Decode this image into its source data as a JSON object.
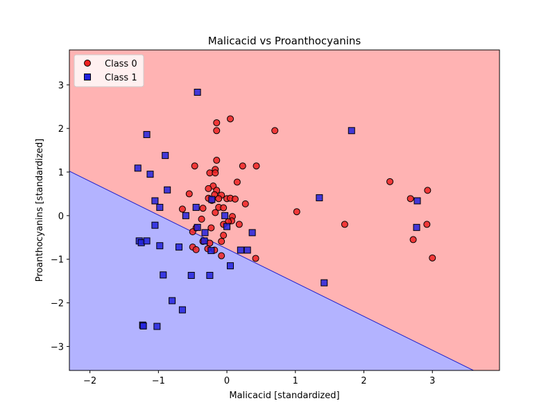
{
  "chart_data": {
    "type": "scatter",
    "title": "Malicacid vs Proanthocyanins",
    "xlabel": "Malicacid [standardized]",
    "ylabel": "Proanthocyanins [standardized]",
    "xlim": [
      -2.3,
      3.98
    ],
    "ylim": [
      -3.55,
      3.8
    ],
    "xticks": [
      -2,
      -1,
      0,
      1,
      2,
      3
    ],
    "yticks": [
      -3,
      -2,
      -1,
      0,
      1,
      2,
      3
    ],
    "grid": false,
    "legend_position": "top-left",
    "decision_boundary": {
      "points": [
        [
          -2.3,
          1.02
        ],
        [
          3.6,
          -3.55
        ]
      ]
    },
    "regions": {
      "class_0_color": "#ffb3b3",
      "class_1_color": "#b3b3ff",
      "boundary_color": "#2020cc"
    },
    "series": [
      {
        "name": "Class 0",
        "marker": "circle",
        "color": "#ee2222",
        "points": [
          [
            0.05,
            2.22
          ],
          [
            -0.15,
            2.13
          ],
          [
            -0.15,
            1.95
          ],
          [
            0.7,
            1.95
          ],
          [
            -0.15,
            1.27
          ],
          [
            -0.47,
            1.14
          ],
          [
            0.23,
            1.14
          ],
          [
            0.43,
            1.14
          ],
          [
            -0.17,
            1.06
          ],
          [
            -0.25,
            0.98
          ],
          [
            -0.17,
            0.98
          ],
          [
            0.15,
            0.77
          ],
          [
            -0.2,
            0.68
          ],
          [
            -0.27,
            0.62
          ],
          [
            -0.15,
            0.58
          ],
          [
            -0.55,
            0.5
          ],
          [
            -0.18,
            0.48
          ],
          [
            -0.08,
            0.47
          ],
          [
            -0.27,
            0.4
          ],
          [
            -0.12,
            0.39
          ],
          [
            0.0,
            0.39
          ],
          [
            0.05,
            0.4
          ],
          [
            0.12,
            0.38
          ],
          [
            0.27,
            0.27
          ],
          [
            -0.22,
            0.35
          ],
          [
            -0.65,
            0.15
          ],
          [
            -0.35,
            0.17
          ],
          [
            -0.12,
            0.19
          ],
          [
            -0.05,
            0.18
          ],
          [
            -0.17,
            0.07
          ],
          [
            0.08,
            -0.02
          ],
          [
            0.07,
            -0.12
          ],
          [
            0.02,
            -0.14
          ],
          [
            -0.05,
            -0.2
          ],
          [
            0.18,
            -0.2
          ],
          [
            -0.37,
            -0.08
          ],
          [
            -0.45,
            -0.28
          ],
          [
            -0.23,
            -0.28
          ],
          [
            -0.5,
            -0.37
          ],
          [
            -0.05,
            -0.45
          ],
          [
            -0.08,
            -0.59
          ],
          [
            -0.35,
            -0.59
          ],
          [
            -0.25,
            -0.63
          ],
          [
            -0.5,
            -0.72
          ],
          [
            -0.45,
            -0.78
          ],
          [
            -0.28,
            -0.76
          ],
          [
            -0.18,
            -0.79
          ],
          [
            -0.08,
            -0.92
          ],
          [
            0.42,
            -0.98
          ],
          [
            1.02,
            0.09
          ],
          [
            1.72,
            -0.2
          ],
          [
            2.38,
            0.78
          ],
          [
            2.68,
            0.39
          ],
          [
            2.93,
            0.58
          ],
          [
            2.92,
            -0.2
          ],
          [
            2.72,
            -0.55
          ],
          [
            3.0,
            -0.97
          ]
        ]
      },
      {
        "name": "Class 1",
        "marker": "square",
        "color": "#2222dd",
        "points": [
          [
            -0.43,
            2.83
          ],
          [
            -1.17,
            1.86
          ],
          [
            -1.3,
            1.09
          ],
          [
            -1.12,
            0.95
          ],
          [
            -0.9,
            1.38
          ],
          [
            -0.87,
            0.59
          ],
          [
            -1.05,
            0.34
          ],
          [
            -0.98,
            0.19
          ],
          [
            -0.45,
            0.19
          ],
          [
            -0.6,
            0.0
          ],
          [
            -0.03,
            0.0
          ],
          [
            -0.22,
            0.37
          ],
          [
            -1.05,
            -0.22
          ],
          [
            -0.43,
            -0.27
          ],
          [
            -0.32,
            -0.39
          ],
          [
            0.0,
            -0.25
          ],
          [
            0.37,
            -0.39
          ],
          [
            -1.28,
            -0.58
          ],
          [
            -1.25,
            -0.62
          ],
          [
            -1.17,
            -0.58
          ],
          [
            -0.98,
            -0.69
          ],
          [
            -0.7,
            -0.72
          ],
          [
            -0.33,
            -0.58
          ],
          [
            -0.23,
            -0.8
          ],
          [
            0.2,
            -0.79
          ],
          [
            0.3,
            -0.79
          ],
          [
            0.05,
            -1.15
          ],
          [
            -0.93,
            -1.36
          ],
          [
            -0.52,
            -1.37
          ],
          [
            -0.25,
            -1.37
          ],
          [
            -0.8,
            -1.95
          ],
          [
            -0.65,
            -2.16
          ],
          [
            -1.23,
            -2.51
          ],
          [
            -1.22,
            -2.53
          ],
          [
            -1.02,
            -2.54
          ],
          [
            1.35,
            0.41
          ],
          [
            1.42,
            -1.54
          ],
          [
            1.82,
            1.95
          ],
          [
            2.78,
            0.34
          ],
          [
            2.77,
            -0.27
          ]
        ]
      }
    ]
  }
}
